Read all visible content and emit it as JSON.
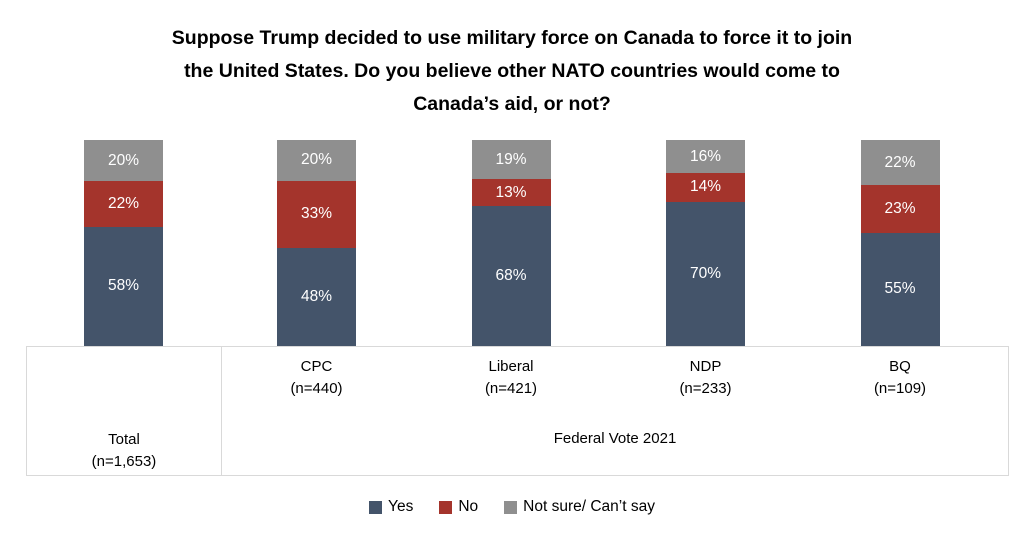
{
  "chart_data": {
    "type": "bar",
    "stacked": true,
    "percent_scale": true,
    "grid": false,
    "legend_position": "bottom",
    "title": "Suppose Trump decided to use military force on Canada to force it to join the United States. Do you believe other NATO countries would come to Canada’s aid, or not?",
    "title_lines": [
      "Suppose Trump decided to use military force on Canada to force it to join",
      "the United States. Do you believe other NATO countries would come to",
      "Canada’s aid, or not?"
    ],
    "categories": [
      {
        "label": "Total",
        "n": "(n=1,653)"
      },
      {
        "label": "CPC",
        "n": "(n=440)"
      },
      {
        "label": "Liberal",
        "n": "(n=421)"
      },
      {
        "label": "NDP",
        "n": "(n=233)"
      },
      {
        "label": "BQ",
        "n": "(n=109)"
      }
    ],
    "group_axis": {
      "label": "Federal Vote 2021",
      "members": [
        "CPC",
        "Liberal",
        "NDP",
        "BQ"
      ]
    },
    "series": [
      {
        "name": "Yes",
        "color": "#44546A",
        "values": [
          58,
          48,
          68,
          70,
          55
        ]
      },
      {
        "name": "No",
        "color": "#A4342C",
        "values": [
          22,
          33,
          13,
          14,
          23
        ]
      },
      {
        "name": "Not sure/ Can’t say",
        "color": "#8F8F8F",
        "values": [
          20,
          20,
          19,
          16,
          22
        ]
      }
    ],
    "value_suffix": "%",
    "value_label_color": "#FFFFFF",
    "axis_border_color": "#D9D9D9"
  }
}
